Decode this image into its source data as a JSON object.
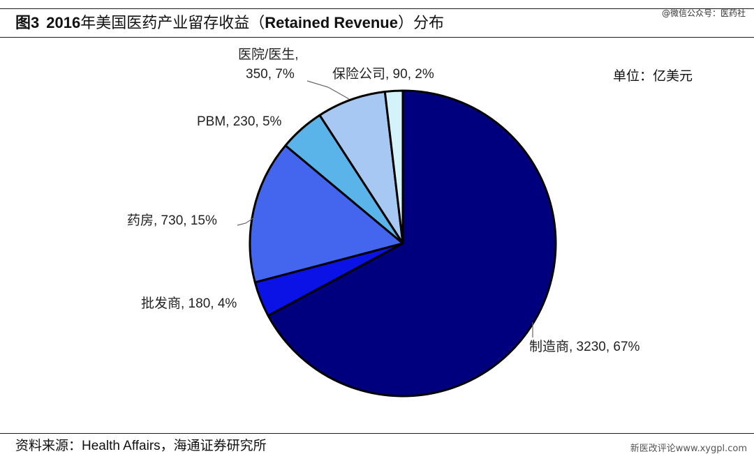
{
  "header": {
    "figure_no": "图3",
    "year": "2016",
    "title_cn": "年美国医药产业留存收益（",
    "title_en": "Retained Revenue",
    "title_end": "）分布"
  },
  "watermark": "@微信公众号：医药社",
  "unit_label": "单位：亿美元",
  "footer": {
    "source_prefix": "资料来源：",
    "source_en": "Health Affairs",
    "source_suffix": "，海通证券研究所",
    "site_credit": "新医改评论www.xygpl.com"
  },
  "colors": {
    "manufacturer": "#00007f",
    "wholesaler": "#0a12e6",
    "pharmacy": "#4466ee",
    "pbm": "#5ab4ea",
    "hospital": "#a8c8f4",
    "insurer": "#d4f2fa",
    "outline": "#000000"
  },
  "chart_data": {
    "type": "pie",
    "title": "2016年美国医药产业留存收益（Retained Revenue）分布",
    "unit": "亿美元",
    "start_angle_deg": 0,
    "direction": "clockwise",
    "slices": [
      {
        "key": "manufacturer",
        "name": "制造商",
        "value": 3230,
        "percent": "67%",
        "label": "制造商, 3230, 67%"
      },
      {
        "key": "wholesaler",
        "name": "批发商",
        "value": 180,
        "percent": "4%",
        "label": "批发商, 180, 4%"
      },
      {
        "key": "pharmacy",
        "name": "药房",
        "value": 730,
        "percent": "15%",
        "label": "药房, 730, 15%"
      },
      {
        "key": "pbm",
        "name": "PBM",
        "value": 230,
        "percent": "5%",
        "label": "PBM, 230, 5%"
      },
      {
        "key": "hospital",
        "name": "医院/医生",
        "value": 350,
        "percent": "7%",
        "label_line1": "医院/医生,",
        "label_line2": "350, 7%"
      },
      {
        "key": "insurer",
        "name": "保险公司",
        "value": 90,
        "percent": "2%",
        "label": "保险公司, 90, 2%"
      }
    ]
  }
}
